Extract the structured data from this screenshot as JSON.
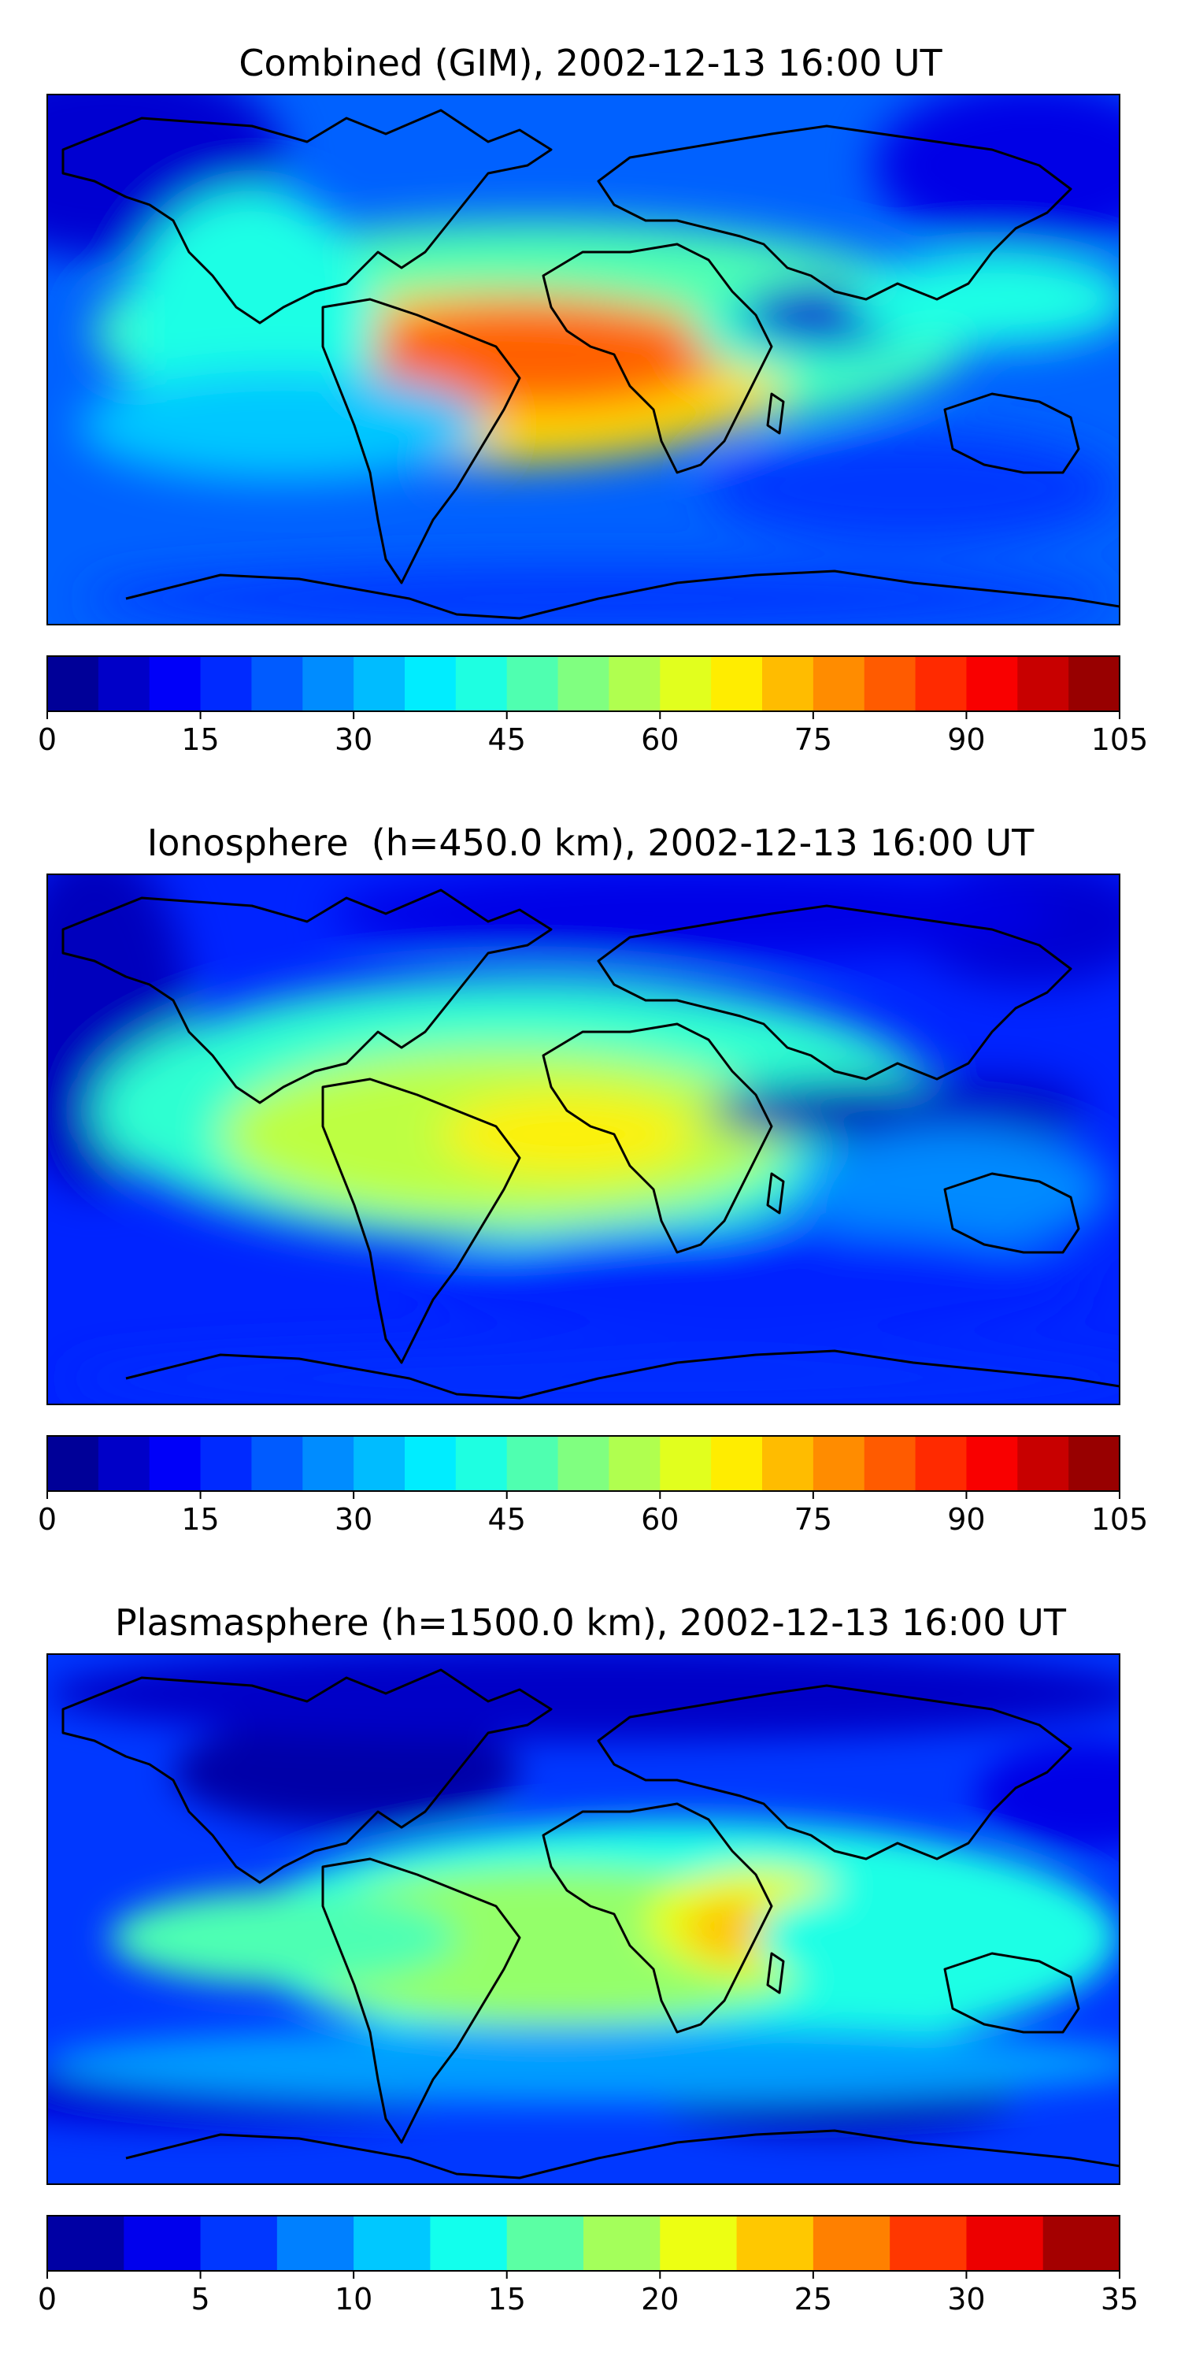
{
  "panels": [
    {
      "title": "Combined (GIM), 2002-12-13 16:00 UT",
      "colorbar": {
        "min": 0,
        "max": 105,
        "step": 5,
        "tick_labels": [
          "0",
          "15",
          "30",
          "45",
          "60",
          "75",
          "90",
          "105"
        ]
      },
      "field_peak": "around 85–90 over South Atlantic / Brazil"
    },
    {
      "title": "Ionosphere  (h=450.0 km), 2002-12-13 16:00 UT",
      "colorbar": {
        "min": 0,
        "max": 105,
        "step": 5,
        "tick_labels": [
          "0",
          "15",
          "30",
          "45",
          "60",
          "75",
          "90",
          "105"
        ]
      },
      "field_peak": "around 65–70 over South Atlantic"
    },
    {
      "title": "Plasmasphere (h=1500.0 km), 2002-12-13 16:00 UT",
      "colorbar": {
        "min": 0,
        "max": 35,
        "step": 2.5,
        "tick_labels": [
          "0",
          "5",
          "10",
          "15",
          "20",
          "25",
          "30",
          "35"
        ]
      },
      "field_peak": "around 22.5–25 over East Africa"
    }
  ],
  "colormap": "jet"
}
